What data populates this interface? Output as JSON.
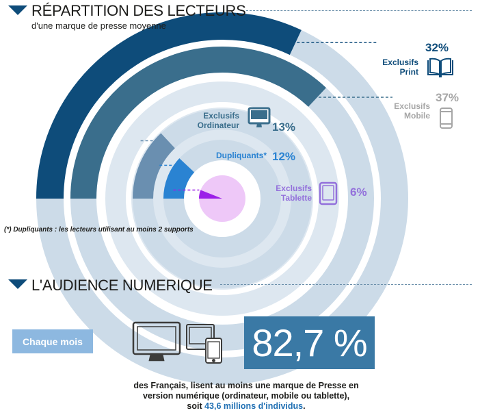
{
  "section1": {
    "title": "RÉPARTITION DES LECTEURS",
    "subtitle": "d'une marque de presse moyenne"
  },
  "chart_data": {
    "type": "radial-bar",
    "title": "RÉPARTITION DES LECTEURS",
    "subtitle": "d'une marque de presse moyenne",
    "unit": "%",
    "series": [
      {
        "name": "Exclusifs Print",
        "value": 32,
        "color": "#0e4c7a"
      },
      {
        "name": "Exclusifs Mobile",
        "value": 37,
        "color": "#3a6e8c"
      },
      {
        "name": "Exclusifs Ordinateur",
        "value": 13,
        "color": "#6a8fb0"
      },
      {
        "name": "Dupliquants*",
        "value": 12,
        "color": "#2a83d2"
      },
      {
        "name": "Exclusifs Tablette",
        "value": 6,
        "color": "#9b1fe8"
      }
    ],
    "labels": [
      {
        "text": "Exclusifs\nPrint",
        "pct": "32%"
      },
      {
        "text": "Exclusifs\nMobile",
        "pct": "37%"
      },
      {
        "text": "Exclusifs\nOrdinateur",
        "pct": "13%"
      },
      {
        "text": "Dupliquants*",
        "pct": "12%"
      },
      {
        "text": "Exclusifs\nTablette",
        "pct": "6%"
      }
    ],
    "footnote": "(*) Dupliquants : les lecteurs utilisant au moins 2 supports"
  },
  "section2": {
    "title": "L'AUDIENCE NUMERIQUE",
    "button_label": "Chaque mois",
    "big_value": "82,7 %",
    "caption_line1": "des Français, lisent au moins une marque de Presse en",
    "caption_line2": "version numérique (ordinateur, mobile ou tablette),",
    "caption_line3_prefix": "soit ",
    "caption_highlight": "43,6 millions d'individus",
    "caption_suffix": "."
  },
  "icons": [
    "book-icon",
    "smartphone-icon",
    "monitor-icon",
    "tablet-icon",
    "desktop-computer-icon",
    "monitor-with-phone-icon"
  ],
  "colors": {
    "ring_track": "#ccdbe8",
    "ring_track_light": "#dde7f0",
    "inner_fill": "#eec8f8",
    "accent_blue": "#3a79a5",
    "button_blue": "#8db8e0",
    "mobile_label_gray": "#a6a6a6",
    "tablet_label_purple": "#9370db",
    "dupli_label_blue": "#2a83d2",
    "highlight_text": "#1f6fb3"
  }
}
